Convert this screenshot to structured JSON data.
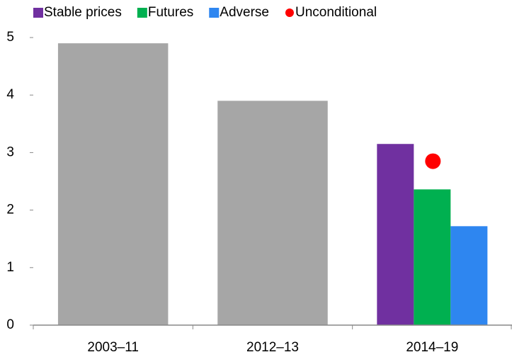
{
  "chart_data": {
    "type": "bar",
    "categories": [
      "2003–11",
      "2012–13",
      "2014–19"
    ],
    "series": [
      {
        "color": "#a6a6a6",
        "values": [
          4.9,
          3.9,
          null
        ]
      },
      {
        "name": "Stable prices",
        "color": "#7030a0",
        "values": [
          null,
          null,
          3.15
        ]
      },
      {
        "name": "Futures",
        "color": "#00b050",
        "values": [
          null,
          null,
          2.36
        ]
      },
      {
        "name": "Adverse",
        "color": "#2e86f0",
        "values": [
          null,
          null,
          1.72
        ]
      },
      {
        "name": "Unconditional",
        "color": "#ff0000",
        "marker": "dot",
        "values": [
          null,
          null,
          2.85
        ]
      }
    ],
    "ylim": [
      0,
      5
    ],
    "yticks": [
      0,
      1,
      2,
      3,
      4,
      5
    ],
    "grid": false
  }
}
